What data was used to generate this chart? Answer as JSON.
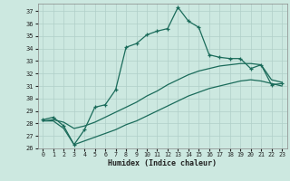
{
  "xlabel": "Humidex (Indice chaleur)",
  "bg_color": "#cce8e0",
  "line_color": "#1a6b5a",
  "grid_color": "#b0cfc8",
  "xlim": [
    -0.5,
    23.5
  ],
  "ylim": [
    26,
    37.6
  ],
  "xticks": [
    0,
    1,
    2,
    3,
    4,
    5,
    6,
    7,
    8,
    9,
    10,
    11,
    12,
    13,
    14,
    15,
    16,
    17,
    18,
    19,
    20,
    21,
    22,
    23
  ],
  "yticks": [
    26,
    27,
    28,
    29,
    30,
    31,
    32,
    33,
    34,
    35,
    36,
    37
  ],
  "line1_x": [
    0,
    1,
    2,
    3,
    4,
    5,
    6,
    7,
    8,
    9,
    10,
    11,
    12,
    13,
    14,
    15,
    16,
    17,
    18,
    19,
    20,
    21,
    22,
    23
  ],
  "line1_y": [
    28.3,
    28.5,
    27.8,
    26.3,
    27.5,
    29.3,
    29.5,
    30.7,
    34.1,
    34.4,
    35.1,
    35.4,
    35.6,
    37.3,
    36.2,
    35.7,
    33.5,
    33.3,
    33.2,
    33.2,
    32.4,
    32.7,
    31.1,
    31.2
  ],
  "line2_x": [
    0,
    1,
    2,
    3,
    4,
    5,
    6,
    7,
    8,
    9,
    10,
    11,
    12,
    13,
    14,
    15,
    16,
    17,
    18,
    19,
    20,
    21,
    22,
    23
  ],
  "line2_y": [
    28.2,
    28.3,
    28.1,
    27.6,
    27.8,
    28.1,
    28.5,
    28.9,
    29.3,
    29.7,
    30.2,
    30.6,
    31.1,
    31.5,
    31.9,
    32.2,
    32.4,
    32.6,
    32.7,
    32.8,
    32.8,
    32.7,
    31.5,
    31.3
  ],
  "line3_x": [
    0,
    1,
    2,
    3,
    4,
    5,
    6,
    7,
    8,
    9,
    10,
    11,
    12,
    13,
    14,
    15,
    16,
    17,
    18,
    19,
    20,
    21,
    22,
    23
  ],
  "line3_y": [
    28.2,
    28.2,
    27.6,
    26.3,
    26.6,
    26.9,
    27.2,
    27.5,
    27.9,
    28.2,
    28.6,
    29.0,
    29.4,
    29.8,
    30.2,
    30.5,
    30.8,
    31.0,
    31.2,
    31.4,
    31.5,
    31.4,
    31.2,
    31.0
  ]
}
